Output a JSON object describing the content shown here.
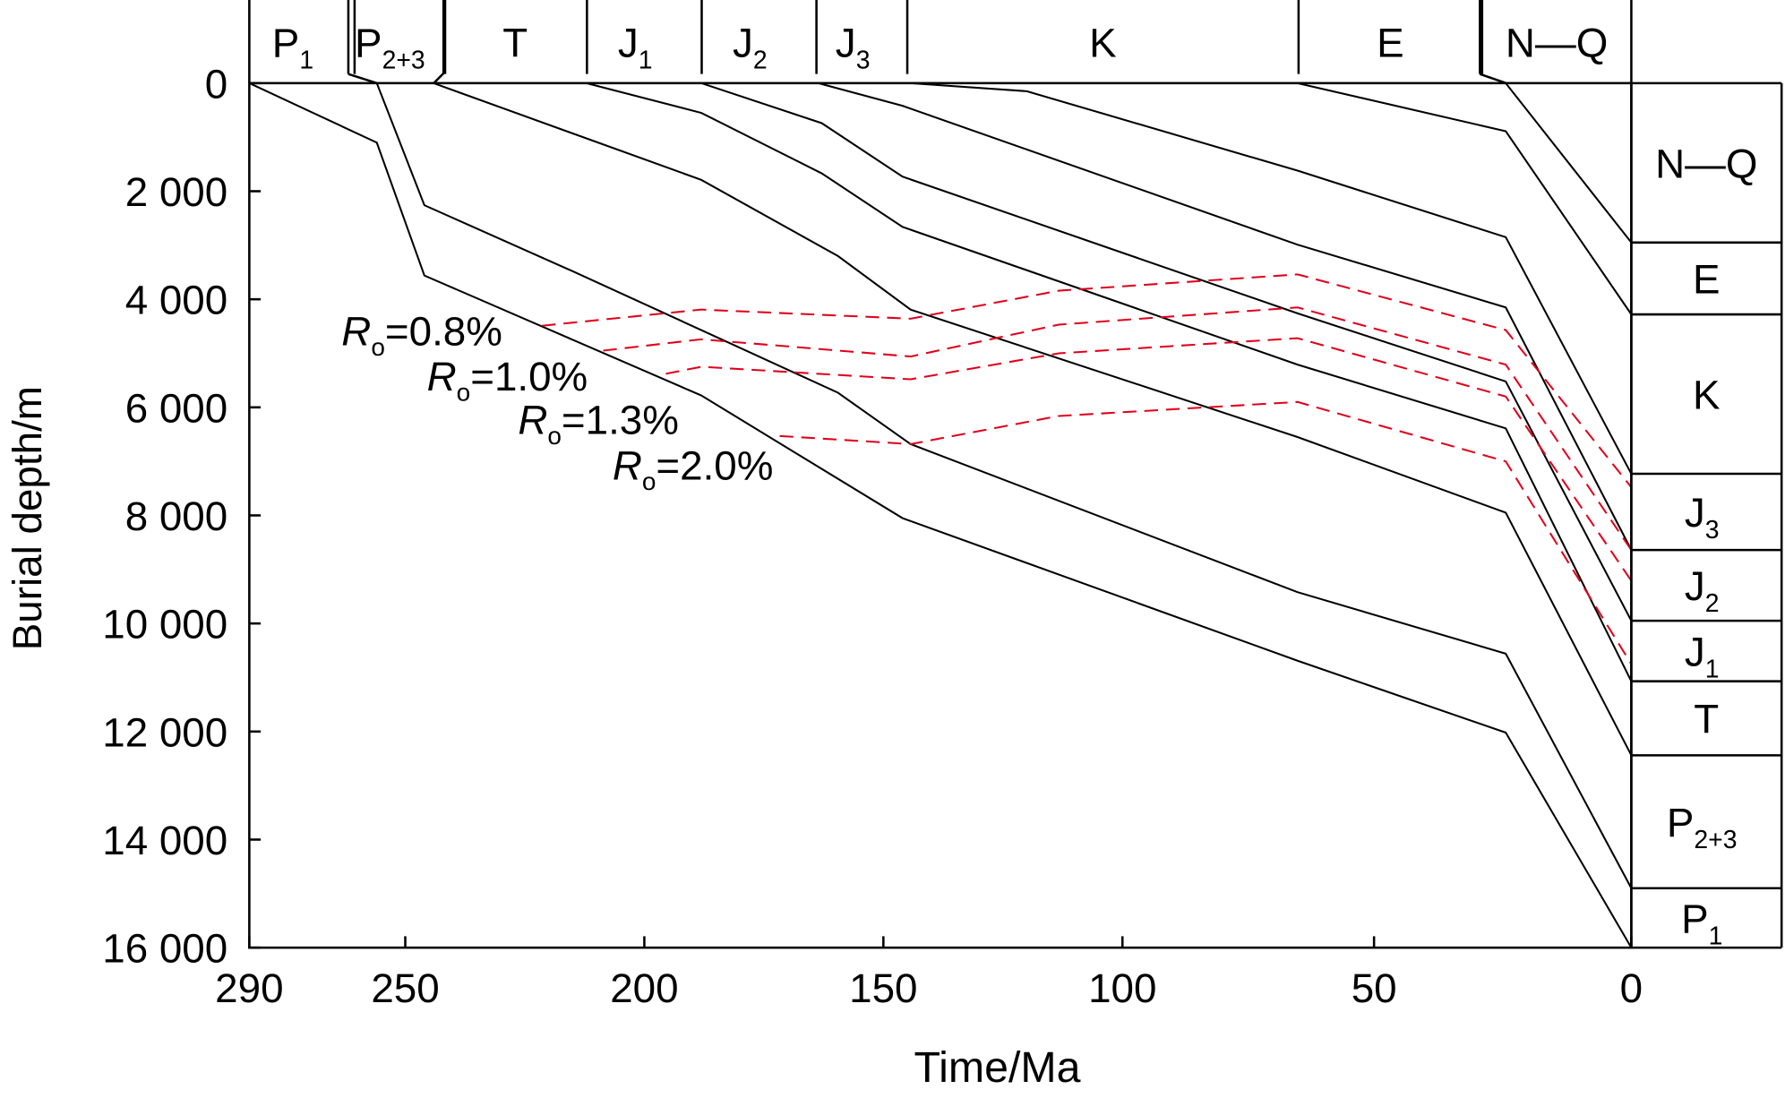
{
  "chart_data": {
    "type": "line",
    "title": "",
    "xlabel": "Time/Ma",
    "ylabel": "Burial depth/m",
    "xlim": [
      290,
      0
    ],
    "ylim": [
      0,
      16000
    ],
    "x_ticks": [
      290,
      250,
      200,
      150,
      100,
      50,
      0
    ],
    "x_tick_labels": [
      "290",
      "250",
      "200",
      "150",
      "100",
      "50",
      "0"
    ],
    "y_ticks": [
      0,
      2000,
      4000,
      6000,
      8000,
      10000,
      12000,
      14000,
      16000
    ],
    "y_tick_labels": [
      "0",
      "2 000",
      "4 000",
      "6 000",
      "8 000",
      "10 000",
      "12 000",
      "14 000",
      "16 000"
    ],
    "grid": false,
    "colors": {
      "burial": "#000000",
      "ro": "#e0001b"
    },
    "stages_top": [
      {
        "main": "P",
        "sub": "1",
        "start": 290,
        "end": 263
      },
      {
        "main": "P",
        "sub": "2+3",
        "start": 263,
        "end": 242
      },
      {
        "main": "T",
        "sub": "",
        "start": 242,
        "end": 212
      },
      {
        "main": "J",
        "sub": "1",
        "start": 212,
        "end": 188
      },
      {
        "main": "J",
        "sub": "2",
        "start": 188,
        "end": 164
      },
      {
        "main": "J",
        "sub": "3",
        "start": 164,
        "end": 145
      },
      {
        "main": "K",
        "sub": "",
        "start": 145,
        "end": 65
      },
      {
        "main": "E",
        "sub": "",
        "start": 65,
        "end": 29
      },
      {
        "main": "N—Q",
        "sub": "",
        "start": 29,
        "end": 0
      }
    ],
    "stratigraphic_column": [
      {
        "main": "N—Q",
        "sub": "",
        "top": 0,
        "bottom": 2950
      },
      {
        "main": "E",
        "sub": "",
        "top": 2950,
        "bottom": 4280
      },
      {
        "main": "K",
        "sub": "",
        "top": 4280,
        "bottom": 7230
      },
      {
        "main": "J",
        "sub": "3",
        "top": 7230,
        "bottom": 8640
      },
      {
        "main": "J",
        "sub": "2",
        "top": 8640,
        "bottom": 9950
      },
      {
        "main": "J",
        "sub": "1",
        "top": 9950,
        "bottom": 11070
      },
      {
        "main": "T",
        "sub": "",
        "top": 11070,
        "bottom": 12440
      },
      {
        "main": "P",
        "sub": "2+3",
        "top": 12440,
        "bottom": 14900
      },
      {
        "main": "P",
        "sub": "1",
        "top": 14900,
        "bottom": 16000
      }
    ],
    "burial_curves": [
      {
        "name": "N—Q base",
        "points": [
          [
            24.4,
            0
          ],
          [
            0,
            2950
          ]
        ]
      },
      {
        "name": "E base",
        "points": [
          [
            65.2,
            0
          ],
          [
            24.4,
            890
          ],
          [
            0,
            4280
          ]
        ]
      },
      {
        "name": "K base",
        "points": [
          [
            144.3,
            0
          ],
          [
            120,
            150
          ],
          [
            65.2,
            1620
          ],
          [
            24.4,
            2850
          ],
          [
            0,
            7230
          ]
        ]
      },
      {
        "name": "J3 base",
        "points": [
          [
            163.6,
            0
          ],
          [
            146,
            420
          ],
          [
            65.2,
            2990
          ],
          [
            24.4,
            4150
          ],
          [
            0,
            8640
          ]
        ]
      },
      {
        "name": "J2 base",
        "points": [
          [
            188.1,
            0
          ],
          [
            162.9,
            740
          ],
          [
            146,
            1730
          ],
          [
            65.2,
            4260
          ],
          [
            24.4,
            5520
          ],
          [
            0,
            9950
          ]
        ]
      },
      {
        "name": "J1 base",
        "points": [
          [
            212.1,
            0
          ],
          [
            188.1,
            550
          ],
          [
            162.9,
            1670
          ],
          [
            146,
            2660
          ],
          [
            65.2,
            5210
          ],
          [
            24.4,
            6390
          ],
          [
            0,
            11070
          ]
        ]
      },
      {
        "name": "T base",
        "points": [
          [
            244.1,
            0
          ],
          [
            188.1,
            1790
          ],
          [
            159.5,
            3200
          ],
          [
            144.3,
            4190
          ],
          [
            65.2,
            6550
          ],
          [
            24.4,
            7950
          ],
          [
            0,
            12440
          ]
        ]
      },
      {
        "name": "P2+3 base",
        "points": [
          [
            257.3,
            0
          ],
          [
            246,
            2260
          ],
          [
            215,
            3480
          ],
          [
            188.1,
            4570
          ],
          [
            159.5,
            5730
          ],
          [
            144.3,
            6680
          ],
          [
            65.2,
            9420
          ],
          [
            24.4,
            10560
          ],
          [
            0,
            14900
          ]
        ]
      },
      {
        "name": "P1 base",
        "points": [
          [
            290,
            0
          ],
          [
            257.3,
            1100
          ],
          [
            246,
            3560
          ],
          [
            188.1,
            5780
          ],
          [
            146,
            8050
          ],
          [
            65.2,
            10690
          ],
          [
            24.4,
            12020
          ],
          [
            0,
            16000
          ]
        ]
      }
    ],
    "ro_isolines": [
      {
        "main": "R",
        "sub": "o",
        "label": "=0.8%",
        "points": [
          [
            221.4,
            4490
          ],
          [
            188.1,
            4190
          ],
          [
            144.3,
            4360
          ],
          [
            113.3,
            3840
          ],
          [
            65.2,
            3540
          ],
          [
            24.4,
            4570
          ],
          [
            0,
            7480
          ]
        ]
      },
      {
        "main": "R",
        "sub": "o",
        "label": "=1.0%",
        "points": [
          [
            208.6,
            4950
          ],
          [
            188.1,
            4740
          ],
          [
            144.3,
            5060
          ],
          [
            113.3,
            4470
          ],
          [
            65.2,
            4150
          ],
          [
            24.4,
            5210
          ],
          [
            0,
            8640
          ]
        ]
      },
      {
        "main": "R",
        "sub": "o",
        "label": "=1.3%",
        "points": [
          [
            195.5,
            5380
          ],
          [
            188.1,
            5250
          ],
          [
            144.3,
            5480
          ],
          [
            113.3,
            5000
          ],
          [
            65.2,
            4720
          ],
          [
            24.4,
            5800
          ],
          [
            0,
            9210
          ]
        ]
      },
      {
        "main": "R",
        "sub": "o",
        "label": "=2.0%",
        "points": [
          [
            171.7,
            6530
          ],
          [
            144.3,
            6680
          ],
          [
            113.3,
            6160
          ],
          [
            65.2,
            5900
          ],
          [
            24.4,
            7000
          ],
          [
            0,
            10750
          ]
        ]
      }
    ]
  }
}
